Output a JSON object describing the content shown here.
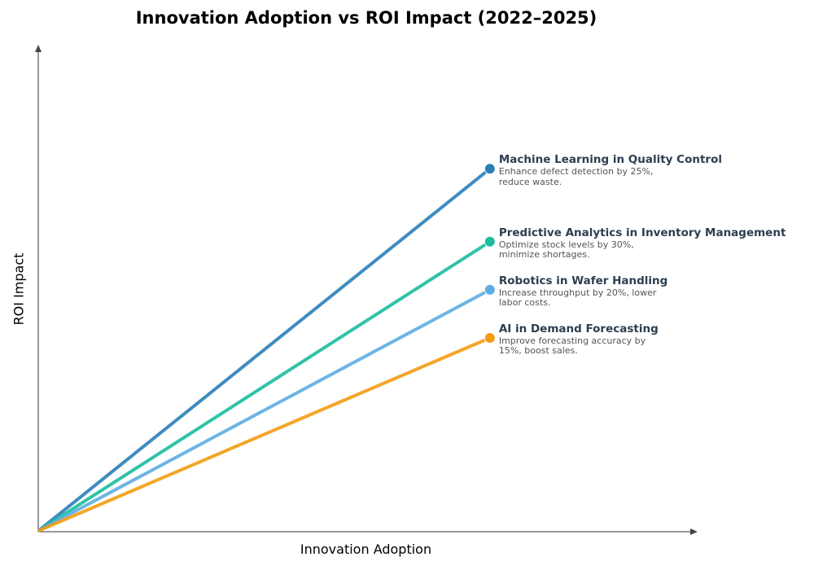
{
  "chart_data": {
    "type": "line",
    "title": "Innovation Adoption vs ROI Impact (2022–2025)",
    "xlabel": "Innovation Adoption",
    "ylabel": "ROI Impact",
    "xlim": [
      0,
      10
    ],
    "ylim": [
      0,
      10
    ],
    "grid": false,
    "ticks": false,
    "series": [
      {
        "name": "Machine Learning in Quality Control",
        "description": "Enhance defect detection by 25%, reduce waste.",
        "color": "#2980b9",
        "x": [
          0,
          6.85
        ],
        "y": [
          0,
          7.45
        ]
      },
      {
        "name": "Predictive Analytics in Inventory Management",
        "description": "Optimize stock levels by 30%, minimize shortages.",
        "color": "#1abc9c",
        "x": [
          0,
          6.85
        ],
        "y": [
          0,
          5.95
        ]
      },
      {
        "name": "Robotics in Wafer Handling",
        "description": "Increase throughput by 20%, lower labor costs.",
        "color": "#5dade2",
        "x": [
          0,
          6.85
        ],
        "y": [
          0,
          4.96
        ]
      },
      {
        "name": "AI in Demand Forecasting",
        "description": "Improve forecasting accuracy by 15%, boost sales.",
        "color": "#f39c12",
        "x": [
          0,
          6.85
        ],
        "y": [
          0,
          3.97
        ]
      }
    ]
  }
}
